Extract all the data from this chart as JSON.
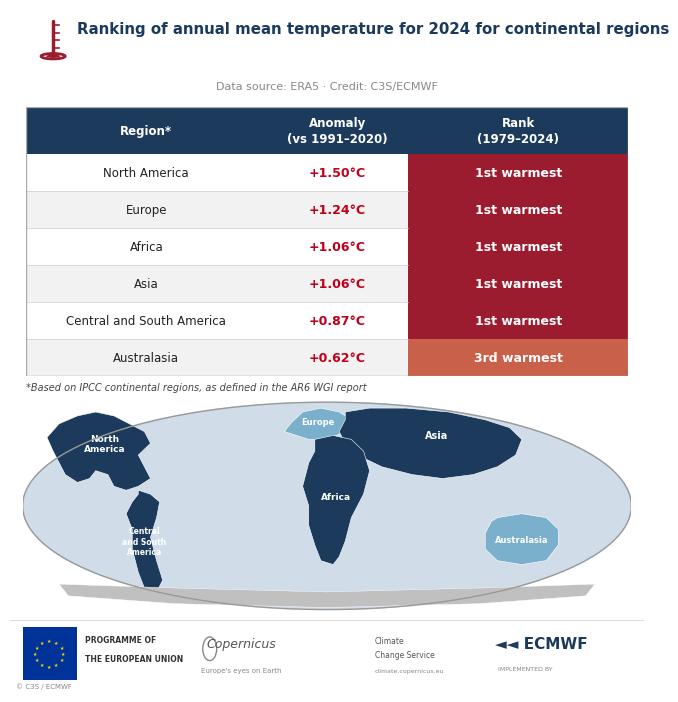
{
  "title": "Ranking of annual mean temperature for 2024 for continental regions",
  "subtitle": "Data source: ERA5 · Credit: C3S/ECMWF",
  "footnote": "*Based on IPCC continental regions, as defined in the AR6 WGI report",
  "copyright": "© C3S / ECMWF",
  "header_region": "Region*",
  "header_anomaly": "Anomaly\n(vs 1991–2020)",
  "header_rank": "Rank\n(1979–2024)",
  "header_bg": "#1b3a5c",
  "header_text_color": "#ffffff",
  "rows": [
    {
      "region": "North America",
      "anomaly": "+1.50°C",
      "rank": "1st warmest",
      "rank_color": "#9b1c2e"
    },
    {
      "region": "Europe",
      "anomaly": "+1.24°C",
      "rank": "1st warmest",
      "rank_color": "#9b1c2e"
    },
    {
      "region": "Africa",
      "anomaly": "+1.06°C",
      "rank": "1st warmest",
      "rank_color": "#9b1c2e"
    },
    {
      "region": "Asia",
      "anomaly": "+1.06°C",
      "rank": "1st warmest",
      "rank_color": "#9b1c2e"
    },
    {
      "region": "Central and South America",
      "anomaly": "+0.87°C",
      "rank": "1st warmest",
      "rank_color": "#9b1c2e"
    },
    {
      "region": "Australasia",
      "anomaly": "+0.62°C",
      "rank": "3rd warmest",
      "rank_color": "#c8604a"
    }
  ],
  "row_bg_even": "#ffffff",
  "row_bg_odd": "#f2f2f2",
  "anomaly_color": "#c0001a",
  "rank_text_color": "#ffffff",
  "table_border_color": "#cccccc",
  "bg_color": "#ffffff",
  "title_color": "#1b3a5c",
  "subtitle_color": "#888888",
  "footnote_color": "#444444",
  "map_ocean": "#c8d8e8",
  "map_globe_border": "#999999",
  "map_dark_blue": "#1b3a5c",
  "map_light_blue": "#7ab0cc",
  "map_antarctica": "#c0c0c0",
  "map_globe_bg": "#d0dde8"
}
